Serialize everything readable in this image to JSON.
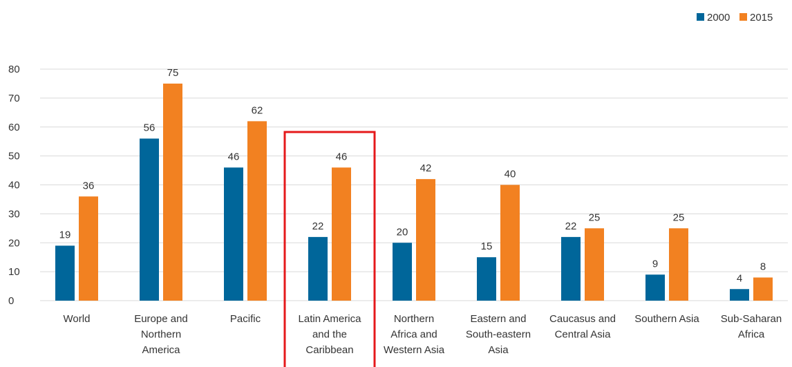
{
  "chart_data": {
    "type": "bar",
    "categories": [
      [
        "World"
      ],
      [
        "Europe and",
        "Northern",
        "America"
      ],
      [
        "Pacific"
      ],
      [
        "Latin America",
        "and the",
        "Caribbean"
      ],
      [
        "Northern",
        "Africa and",
        "Western Asia"
      ],
      [
        "Eastern and",
        "South-eastern",
        "Asia"
      ],
      [
        "Caucasus and",
        "Central Asia"
      ],
      [
        "Southern Asia"
      ],
      [
        "Sub-Saharan",
        "Africa"
      ]
    ],
    "series": [
      {
        "name": "2000",
        "color": "#00669a",
        "values": [
          19,
          56,
          46,
          22,
          20,
          15,
          22,
          9,
          4
        ]
      },
      {
        "name": "2015",
        "color": "#f28121",
        "values": [
          36,
          75,
          62,
          46,
          42,
          40,
          25,
          25,
          8
        ]
      }
    ],
    "ylim": [
      0,
      80
    ],
    "yticks": [
      0,
      10,
      20,
      30,
      40,
      50,
      60,
      70,
      80
    ],
    "grid": true,
    "legend_position": "top-right",
    "highlight": {
      "category_index": 3,
      "color": "#e5191b"
    }
  }
}
